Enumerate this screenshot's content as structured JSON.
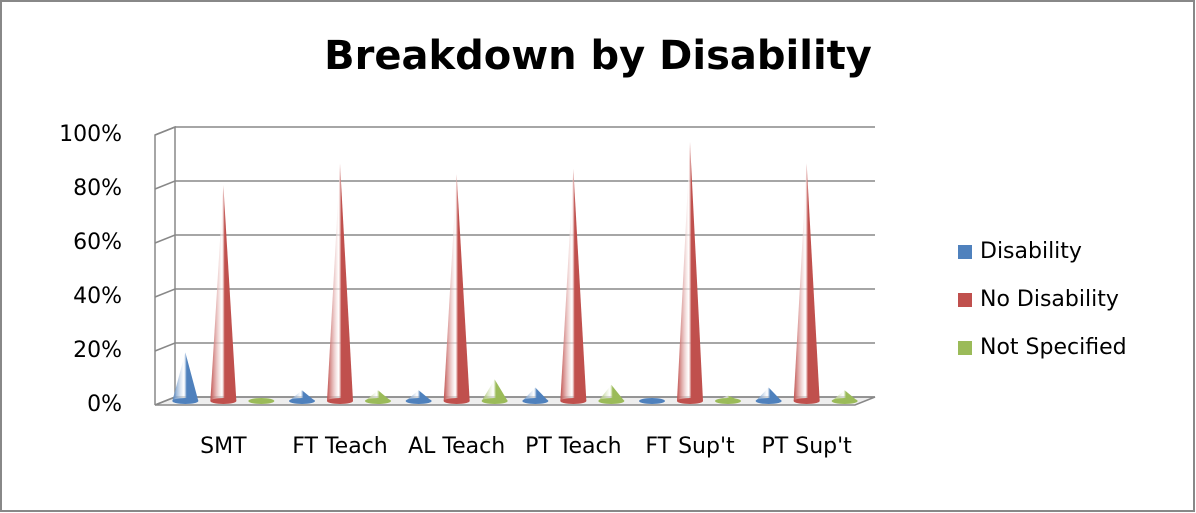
{
  "chart_data": {
    "type": "cone",
    "title": "Breakdown by Disability",
    "categories": [
      "SMT",
      "FT Teach",
      "AL Teach",
      "PT Teach",
      "FT Sup't",
      "PT Sup't"
    ],
    "series": [
      {
        "name": "Disability",
        "color": "#4f81bd",
        "values": [
          18,
          4,
          4,
          5,
          1,
          5
        ]
      },
      {
        "name": "No Disability",
        "color": "#c0504d",
        "values": [
          80,
          88,
          84,
          86,
          96,
          88
        ]
      },
      {
        "name": "Not Specified",
        "color": "#9bbb59",
        "values": [
          1,
          4,
          8,
          6,
          2,
          4
        ]
      }
    ],
    "ylim": [
      0,
      100
    ],
    "yticks": [
      {
        "value": 0,
        "label": "0%"
      },
      {
        "value": 20,
        "label": "20%"
      },
      {
        "value": 40,
        "label": "40%"
      },
      {
        "value": 60,
        "label": "60%"
      },
      {
        "value": 80,
        "label": "80%"
      },
      {
        "value": 100,
        "label": "100%"
      }
    ],
    "grid": true
  }
}
